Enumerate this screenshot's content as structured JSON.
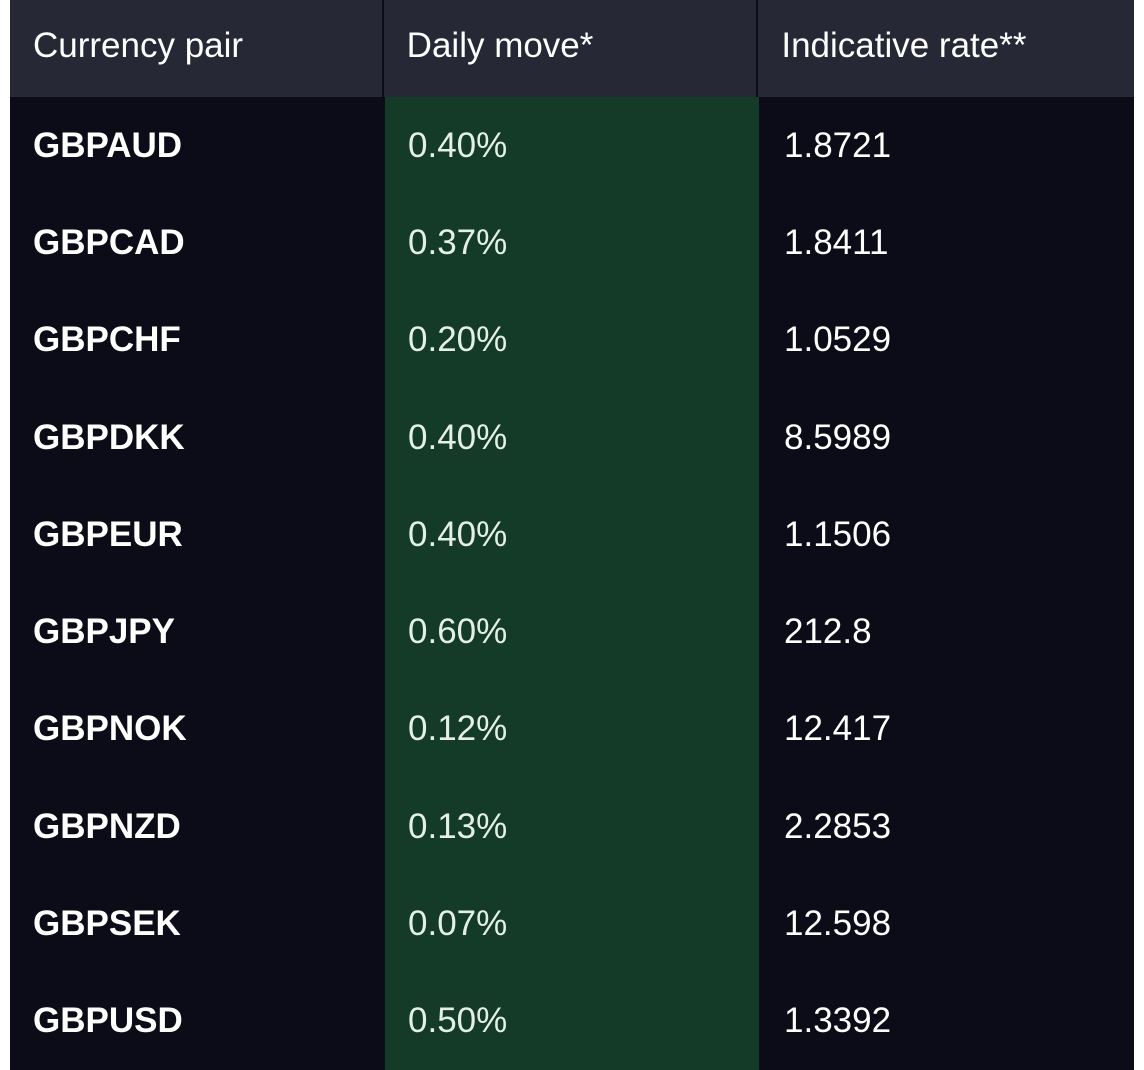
{
  "table": {
    "headers": {
      "pair": "Currency pair",
      "move": "Daily move*",
      "rate": "Indicative rate**"
    },
    "rows": [
      {
        "pair": "GBPAUD",
        "move": "0.40%",
        "rate": "1.8721"
      },
      {
        "pair": "GBPCAD",
        "move": "0.37%",
        "rate": "1.8411"
      },
      {
        "pair": "GBPCHF",
        "move": "0.20%",
        "rate": "1.0529"
      },
      {
        "pair": "GBPDKK",
        "move": "0.40%",
        "rate": "8.5989"
      },
      {
        "pair": "GBPEUR",
        "move": "0.40%",
        "rate": "1.1506"
      },
      {
        "pair": "GBPJPY",
        "move": "0.60%",
        "rate": "212.8"
      },
      {
        "pair": "GBPNOK",
        "move": "0.12%",
        "rate": "12.417"
      },
      {
        "pair": "GBPNZD",
        "move": "0.13%",
        "rate": "2.2853"
      },
      {
        "pair": "GBPSEK",
        "move": "0.07%",
        "rate": "12.598"
      },
      {
        "pair": "GBPUSD",
        "move": "0.50%",
        "rate": "1.3392"
      }
    ]
  },
  "colors": {
    "background": "#0b0c18",
    "header_background": "#262836",
    "move_column_background": "#133b27",
    "text": "#ffffff"
  }
}
